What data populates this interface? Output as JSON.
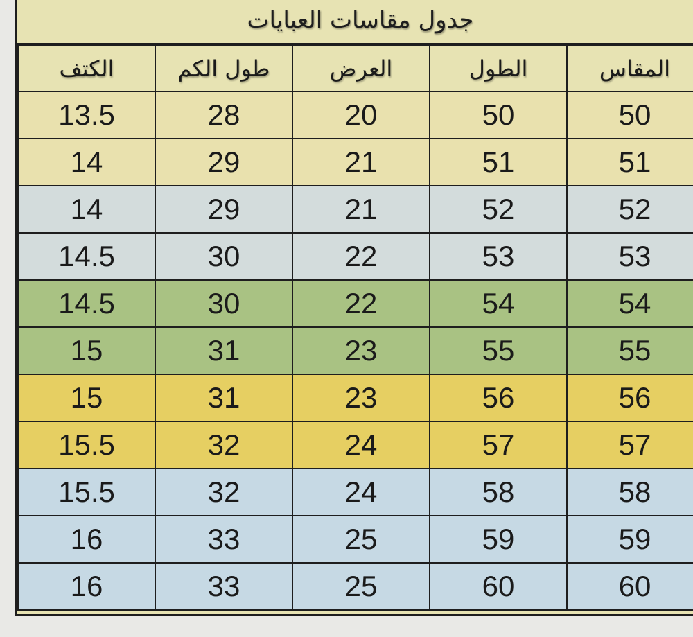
{
  "title": "جدول مقاسات العبايات",
  "columns": [
    "المقاس",
    "الطول",
    "العرض",
    "طول الكم",
    "الكتف"
  ],
  "rows": [
    {
      "color": "#e9e1ae",
      "cells": [
        "50",
        "50",
        "20",
        "28",
        "13.5"
      ]
    },
    {
      "color": "#e9e1ae",
      "cells": [
        "51",
        "51",
        "21",
        "29",
        "14"
      ]
    },
    {
      "color": "#d3dcdc",
      "cells": [
        "52",
        "52",
        "21",
        "29",
        "14"
      ]
    },
    {
      "color": "#d3dcdc",
      "cells": [
        "53",
        "53",
        "22",
        "30",
        "14.5"
      ]
    },
    {
      "color": "#a9c283",
      "cells": [
        "54",
        "54",
        "22",
        "30",
        "14.5"
      ]
    },
    {
      "color": "#a9c283",
      "cells": [
        "55",
        "55",
        "23",
        "31",
        "15"
      ]
    },
    {
      "color": "#e6cf62",
      "cells": [
        "56",
        "56",
        "23",
        "31",
        "15"
      ]
    },
    {
      "color": "#e6cf62",
      "cells": [
        "57",
        "57",
        "24",
        "32",
        "15.5"
      ]
    },
    {
      "color": "#c6d9e4",
      "cells": [
        "58",
        "58",
        "24",
        "32",
        "15.5"
      ]
    },
    {
      "color": "#c6d9e4",
      "cells": [
        "59",
        "59",
        "25",
        "33",
        "16"
      ]
    },
    {
      "color": "#c6d9e4",
      "cells": [
        "60",
        "60",
        "25",
        "33",
        "16"
      ]
    }
  ]
}
